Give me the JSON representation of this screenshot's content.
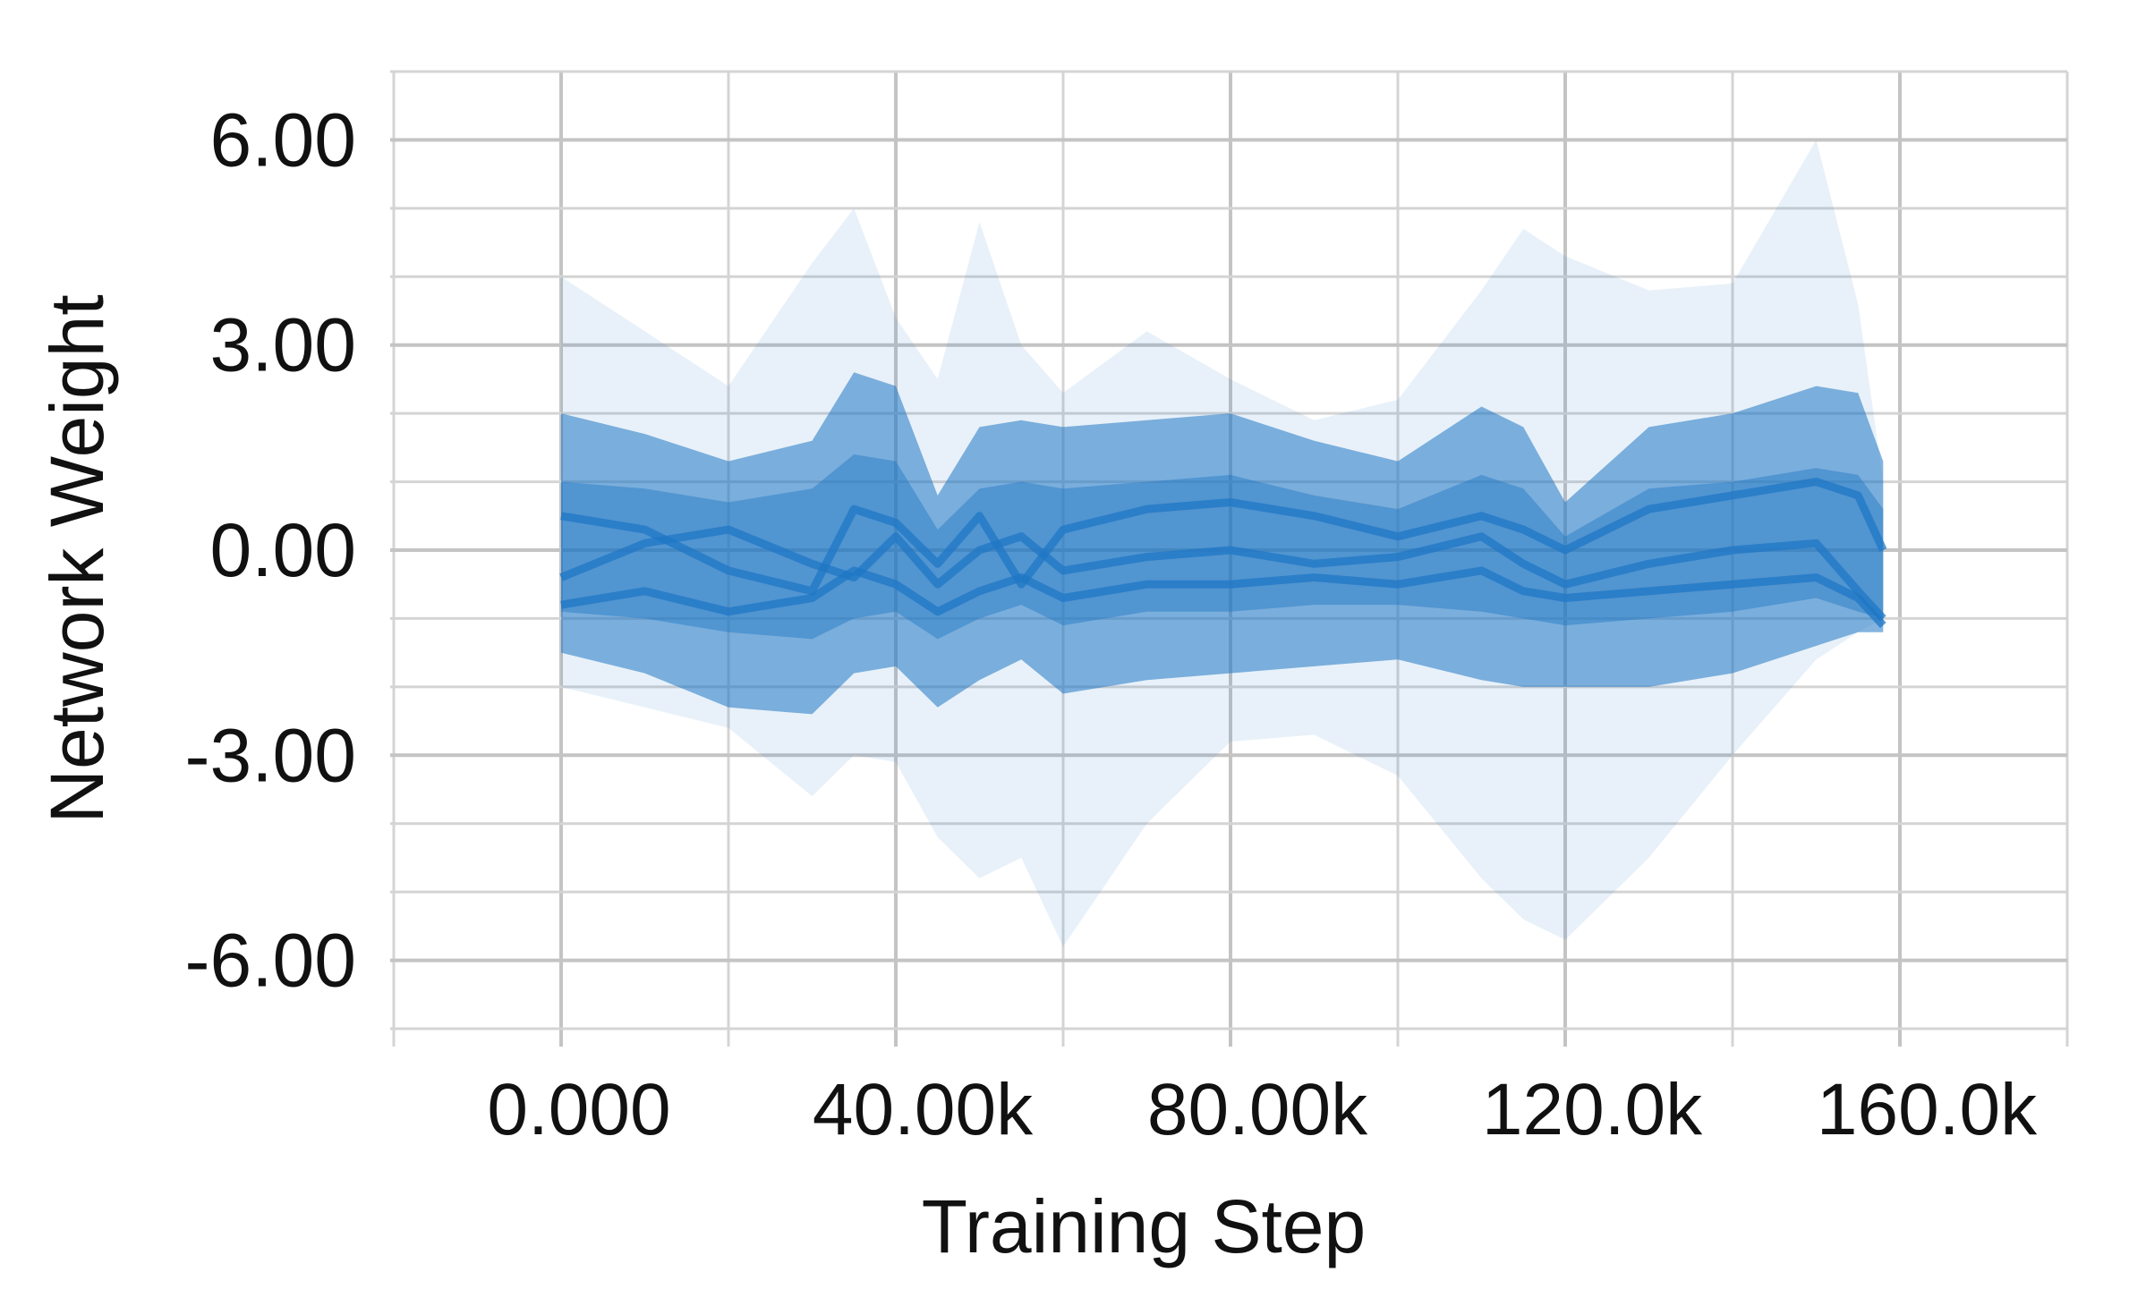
{
  "chart_data": {
    "type": "area",
    "xlabel": "Training Step",
    "ylabel": "Network Weight",
    "x_ticks": [
      "0.000",
      "40.00k",
      "80.00k",
      "120.0k",
      "160.0k"
    ],
    "x_tick_values": [
      0,
      40000,
      80000,
      120000,
      160000
    ],
    "y_ticks": [
      "6.00",
      "3.00",
      "0.00",
      "-3.00",
      "-6.00"
    ],
    "y_tick_values": [
      6,
      3,
      0,
      -3,
      -6
    ],
    "xlim": [
      -20000,
      180000
    ],
    "ylim": [
      -7,
      7
    ],
    "grid": true,
    "legend": "none",
    "color": "#1f77c4",
    "x": [
      0,
      10000,
      20000,
      30000,
      35000,
      40000,
      45000,
      50000,
      55000,
      60000,
      70000,
      80000,
      90000,
      100000,
      110000,
      115000,
      120000,
      130000,
      140000,
      150000,
      155000,
      158000
    ],
    "bands": [
      {
        "name": "",
        "lower": [
          -2.0,
          -2.3,
          -2.6,
          -3.6,
          -3.0,
          -3.1,
          -4.2,
          -4.8,
          -4.5,
          -5.8,
          -4.0,
          -2.8,
          -2.7,
          -3.3,
          -4.8,
          -5.4,
          -5.7,
          -4.5,
          -3.0,
          -1.6,
          -1.2,
          -1.0
        ],
        "upper": [
          4.0,
          3.2,
          2.4,
          4.2,
          5.0,
          3.4,
          2.5,
          4.8,
          3.0,
          2.3,
          3.2,
          2.5,
          1.9,
          2.2,
          3.8,
          4.7,
          4.3,
          3.8,
          3.9,
          6.0,
          3.6,
          1.0
        ]
      },
      {
        "name": "",
        "lower": [
          -1.5,
          -1.8,
          -2.3,
          -2.4,
          -1.8,
          -1.7,
          -2.3,
          -1.9,
          -1.6,
          -2.1,
          -1.9,
          -1.8,
          -1.7,
          -1.6,
          -1.9,
          -2.0,
          -2.0,
          -2.0,
          -1.8,
          -1.4,
          -1.2,
          -1.2
        ],
        "upper": [
          2.0,
          1.7,
          1.3,
          1.6,
          2.6,
          2.4,
          0.8,
          1.8,
          1.9,
          1.8,
          1.9,
          2.0,
          1.6,
          1.3,
          2.1,
          1.8,
          0.7,
          1.8,
          2.0,
          2.4,
          2.3,
          1.3
        ]
      },
      {
        "name": "",
        "lower": [
          -0.9,
          -1.0,
          -1.2,
          -1.3,
          -1.0,
          -0.9,
          -1.3,
          -1.0,
          -0.8,
          -1.1,
          -0.9,
          -0.9,
          -0.8,
          -0.8,
          -0.9,
          -1.0,
          -1.1,
          -1.0,
          -0.9,
          -0.7,
          -0.9,
          -1.0
        ],
        "upper": [
          1.0,
          0.9,
          0.7,
          0.9,
          1.4,
          1.3,
          0.3,
          0.9,
          1.0,
          0.9,
          1.0,
          1.1,
          0.8,
          0.6,
          1.1,
          0.9,
          0.2,
          0.9,
          1.0,
          1.2,
          1.1,
          0.6
        ]
      }
    ],
    "series": [
      {
        "name": "",
        "values": [
          -0.4,
          0.1,
          0.3,
          -0.2,
          -0.4,
          0.2,
          -0.5,
          0.0,
          0.2,
          -0.3,
          -0.1,
          0.0,
          -0.2,
          -0.1,
          0.2,
          -0.2,
          -0.5,
          -0.2,
          0.0,
          0.1,
          -0.6,
          -1.0
        ]
      },
      {
        "name": "",
        "values": [
          0.5,
          0.3,
          -0.3,
          -0.6,
          0.6,
          0.4,
          -0.2,
          0.5,
          -0.5,
          0.3,
          0.6,
          0.7,
          0.5,
          0.2,
          0.5,
          0.3,
          0.0,
          0.6,
          0.8,
          1.0,
          0.8,
          0.0
        ]
      },
      {
        "name": "",
        "values": [
          -0.8,
          -0.6,
          -0.9,
          -0.7,
          -0.3,
          -0.5,
          -0.9,
          -0.6,
          -0.4,
          -0.7,
          -0.5,
          -0.5,
          -0.4,
          -0.5,
          -0.3,
          -0.6,
          -0.7,
          -0.6,
          -0.5,
          -0.4,
          -0.7,
          -1.1
        ]
      }
    ]
  }
}
